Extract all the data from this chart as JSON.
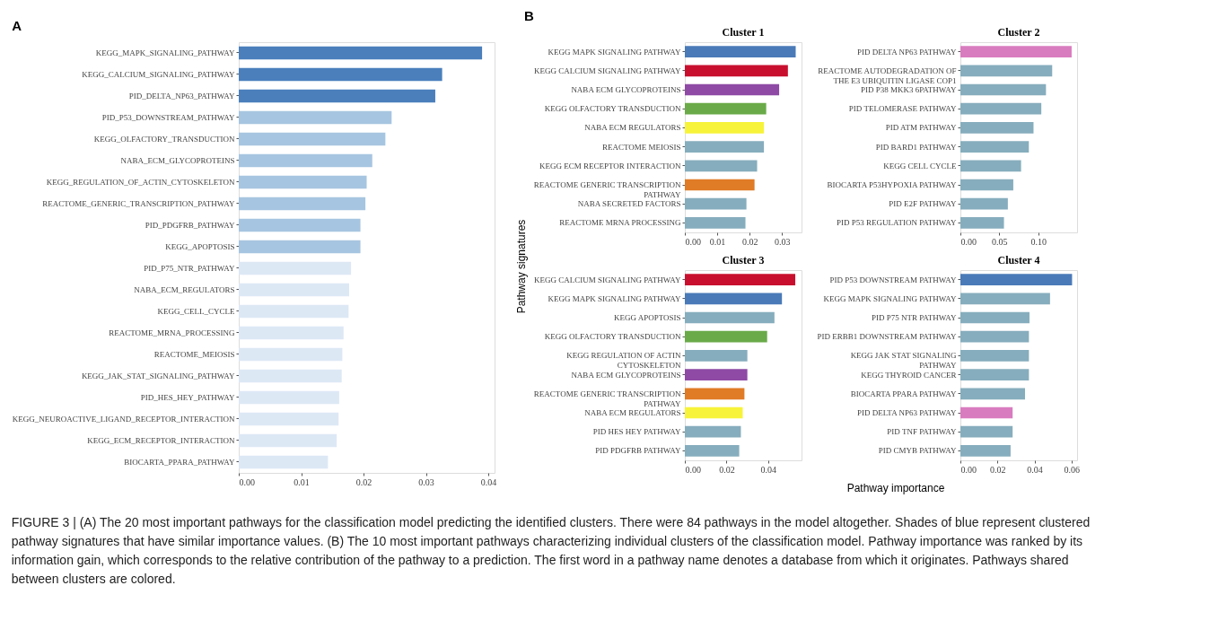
{
  "chart_data": [
    {
      "type": "bar",
      "orientation": "horizontal",
      "title": "A",
      "grid": false,
      "categories": [
        "KEGG_MAPK_SIGNALING_PATHWAY",
        "KEGG_CALCIUM_SIGNALING_PATHWAY",
        "PID_DELTA_NP63_PATHWAY",
        "PID_P53_DOWNSTREAM_PATHWAY",
        "KEGG_OLFACTORY_TRANSDUCTION",
        "NABA_ECM_GLYCOPROTEINS",
        "KEGG_REGULATION_OF_ACTIN_CYTOSKELETON",
        "REACTOME_GENERIC_TRANSCRIPTION_PATHWAY",
        "PID_PDGFRB_PATHWAY",
        "KEGG_APOPTOSIS",
        "PID_P75_NTR_PATHWAY",
        "NABA_ECM_REGULATORS",
        "KEGG_CELL_CYCLE",
        "REACTOME_MRNA_PROCESSING",
        "REACTOME_MEIOSIS",
        "KEGG_JAK_STAT_SIGNALING_PATHWAY",
        "PID_HES_HEY_PATHWAY",
        "KEGG_NEUROACTIVE_LIGAND_RECEPTOR_INTERACTION",
        "KEGG_ECM_RECEPTOR_INTERACTION",
        "BIOCARTA_PPARA_PATHWAY"
      ],
      "values": [
        0.039,
        0.0326,
        0.0315,
        0.0245,
        0.0235,
        0.0214,
        0.0205,
        0.0203,
        0.0195,
        0.0195,
        0.018,
        0.0177,
        0.0176,
        0.0168,
        0.0166,
        0.0165,
        0.0161,
        0.016,
        0.0157,
        0.0143
      ],
      "colors": [
        "#4a7fbc",
        "#4a7fbc",
        "#4a7fbc",
        "#a6c5e0",
        "#a6c5e0",
        "#a6c5e0",
        "#a6c5e0",
        "#a6c5e0",
        "#a6c5e0",
        "#a6c5e0",
        "#dde8f5",
        "#dde8f5",
        "#dde8f5",
        "#dde8f5",
        "#dde8f5",
        "#dde8f5",
        "#dde8f5",
        "#dde8f5",
        "#dde8f5",
        "#dde8f5"
      ],
      "xlim": [
        0,
        0.041
      ],
      "xticks": [
        {
          "value": 0,
          "label": "0.00"
        },
        {
          "value": 0.01,
          "label": "0.01"
        },
        {
          "value": 0.02,
          "label": "0.02"
        },
        {
          "value": 0.03,
          "label": "0.03"
        },
        {
          "value": 0.04,
          "label": "0.04"
        }
      ],
      "annotations": [
        "FIGURE 3 | (A) The 20 most important pathways for the classification model predicting the identified clusters. There were 84 pathways in the model altogether. Shades of blue represent clustered pathway signatures that have similar importance values. (B) The 10 most important pathways characterizing individual clusters of the classification model. Pathway importance was ranked by its information gain, which corresponds to the relative contribution of the pathway to a prediction. The first word in a pathway name denotes a database from which it originates. Pathways shared between clusters are colored."
      ]
    },
    {
      "type": "bar",
      "orientation": "horizontal",
      "title": "Cluster 1",
      "grid": false,
      "ylabel": "Pathway signatures",
      "annotations": [
        "B"
      ],
      "categories": [
        "KEGG MAPK SIGNALING PATHWAY",
        "KEGG CALCIUM SIGNALING PATHWAY",
        "NABA ECM GLYCOPROTEINS",
        "KEGG OLFACTORY TRANSDUCTION",
        "NABA ECM REGULATORS",
        "REACTOME MEIOSIS",
        "KEGG ECM RECEPTOR INTERACTION",
        "REACTOME GENERIC TRANSCRIPTION\nPATHWAY",
        "NABA SECRETED FACTORS",
        "REACTOME MRNA PROCESSING"
      ],
      "values": [
        0.0342,
        0.0318,
        0.0291,
        0.0251,
        0.0244,
        0.0244,
        0.0223,
        0.0215,
        0.019,
        0.0187
      ],
      "colors": [
        "#4a7ab8",
        "#c8102e",
        "#8e4aa5",
        "#6aaa49",
        "#f7f33a",
        "#86adbd",
        "#86adbd",
        "#e07b26",
        "#86adbd",
        "#86adbd"
      ],
      "xlim": [
        0,
        0.036
      ],
      "xticks": [
        {
          "value": 0,
          "label": "0.00"
        },
        {
          "value": 0.01,
          "label": "0.01"
        },
        {
          "value": 0.02,
          "label": "0.02"
        },
        {
          "value": 0.03,
          "label": "0.03"
        }
      ]
    },
    {
      "type": "bar",
      "orientation": "horizontal",
      "title": "Cluster 2",
      "grid": false,
      "categories": [
        "PID DELTA NP63 PATHWAY",
        "REACTOME AUTODEGRADATION OF\nTHE E3 UBIQUITIN LIGASE COP1",
        "PID P38 MKK3 6PATHWAY",
        "PID TELOMERASE PATHWAY",
        "PID ATM PATHWAY",
        "PID BARD1 PATHWAY",
        "KEGG CELL CYCLE",
        "BIOCARTA P53HYPOXIA PATHWAY",
        "PID E2F PATHWAY",
        "PID P53 REGULATION PATHWAY"
      ],
      "values": [
        0.143,
        0.118,
        0.11,
        0.104,
        0.094,
        0.088,
        0.078,
        0.068,
        0.061,
        0.056
      ],
      "colors": [
        "#d97cbf",
        "#86adbd",
        "#86adbd",
        "#86adbd",
        "#86adbd",
        "#86adbd",
        "#86adbd",
        "#86adbd",
        "#86adbd",
        "#86adbd"
      ],
      "xlim": [
        0,
        0.15
      ],
      "xticks": [
        {
          "value": 0,
          "label": "0.00"
        },
        {
          "value": 0.05,
          "label": "0.05"
        },
        {
          "value": 0.1,
          "label": "0.10"
        }
      ]
    },
    {
      "type": "bar",
      "orientation": "horizontal",
      "title": "Cluster 3",
      "grid": false,
      "xlabel": "Pathway importance",
      "categories": [
        "KEGG CALCIUM SIGNALING PATHWAY",
        "KEGG MAPK SIGNALING PATHWAY",
        "KEGG APOPTOSIS",
        "KEGG OLFACTORY TRANSDUCTION",
        "KEGG REGULATION OF ACTIN\nCYTOSKELETON",
        "NABA ECM GLYCOPROTEINS",
        "REACTOME GENERIC TRANSCRIPTION\nPATHWAY",
        "NABA ECM REGULATORS",
        "PID HES HEY PATHWAY",
        "PID PDGFRB PATHWAY"
      ],
      "values": [
        0.053,
        0.0466,
        0.043,
        0.0395,
        0.03,
        0.03,
        0.0286,
        0.0278,
        0.0269,
        0.0261
      ],
      "colors": [
        "#c8102e",
        "#4a7ab8",
        "#86adbd",
        "#6aaa49",
        "#86adbd",
        "#8e4aa5",
        "#e07b26",
        "#f7f33a",
        "#86adbd",
        "#86adbd"
      ],
      "xlim": [
        0,
        0.056
      ],
      "xticks": [
        {
          "value": 0,
          "label": "0.00"
        },
        {
          "value": 0.02,
          "label": "0.02"
        },
        {
          "value": 0.04,
          "label": "0.04"
        }
      ]
    },
    {
      "type": "bar",
      "orientation": "horizontal",
      "title": "Cluster 4",
      "grid": false,
      "categories": [
        "PID P53 DOWNSTREAM PATHWAY",
        "KEGG MAPK SIGNALING PATHWAY",
        "PID P75 NTR PATHWAY",
        "PID ERBB1 DOWNSTREAM PATHWAY",
        "KEGG JAK STAT SIGNALING\nPATHWAY",
        "KEGG THYROID CANCER",
        "BIOCARTA PPARA PATHWAY",
        "PID DELTA NP63 PATHWAY",
        "PID TNF PATHWAY",
        "PID CMYB PATHWAY"
      ],
      "values": [
        0.0603,
        0.0484,
        0.0373,
        0.037,
        0.037,
        0.037,
        0.0349,
        0.0282,
        0.0282,
        0.0271
      ],
      "colors": [
        "#4a7ab8",
        "#86adbd",
        "#86adbd",
        "#86adbd",
        "#86adbd",
        "#86adbd",
        "#86adbd",
        "#d97cbf",
        "#86adbd",
        "#86adbd"
      ],
      "xlim": [
        0,
        0.063
      ],
      "xticks": [
        {
          "value": 0,
          "label": "0.00"
        },
        {
          "value": 0.02,
          "label": "0.02"
        },
        {
          "value": 0.04,
          "label": "0.04"
        },
        {
          "value": 0.06,
          "label": "0.06"
        }
      ]
    }
  ]
}
